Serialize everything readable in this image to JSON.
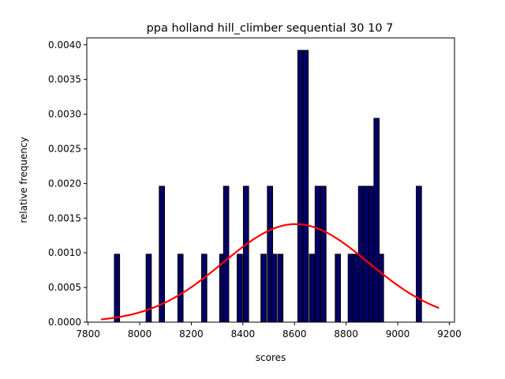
{
  "chart_data": {
    "type": "bar",
    "title": "ppa holland hill_climber sequential 30 10 7",
    "xlabel": "scores",
    "ylabel": "relative frequency",
    "xlim": [
      7795,
      9220
    ],
    "ylim": [
      0,
      0.0041
    ],
    "xticks": [
      7800,
      8000,
      8200,
      8400,
      8600,
      8800,
      9000,
      9200
    ],
    "xtick_labels": [
      "7800",
      "8000",
      "8200",
      "8400",
      "8600",
      "8800",
      "9000",
      "9200"
    ],
    "yticks": [
      0.0,
      0.0005,
      0.001,
      0.0015,
      0.002,
      0.0025,
      0.003,
      0.0035,
      0.004
    ],
    "ytick_labels": [
      "0.0000",
      "0.0005",
      "0.0010",
      "0.0015",
      "0.0020",
      "0.0025",
      "0.0030",
      "0.0035",
      "0.0040"
    ],
    "grid": false,
    "bin_width": 20.4,
    "bars_x": [
      7912,
      8035,
      8086,
      8158,
      8250,
      8320,
      8335,
      8388,
      8412,
      8480,
      8505,
      8520,
      8545,
      8623,
      8643,
      8668,
      8690,
      8712,
      8768,
      8818,
      8838,
      8858,
      8878,
      8898,
      8918,
      8935,
      9082
    ],
    "bars_y": [
      0.00098,
      0.00098,
      0.00196,
      0.00098,
      0.00098,
      0.00098,
      0.00196,
      0.00098,
      0.00196,
      0.00098,
      0.00196,
      0.00098,
      0.00098,
      0.00392,
      0.00392,
      0.00098,
      0.00196,
      0.00196,
      0.00098,
      0.00098,
      0.00098,
      0.00196,
      0.00196,
      0.00196,
      0.00294,
      0.00098,
      0.00196
    ],
    "bar_color": "#000066",
    "bar_edge_color": "#000000",
    "fit_line": {
      "type": "normal-pdf",
      "mean": 8605,
      "std": 282,
      "x_range": [
        7850,
        9160
      ],
      "color": "#ff0000"
    }
  }
}
